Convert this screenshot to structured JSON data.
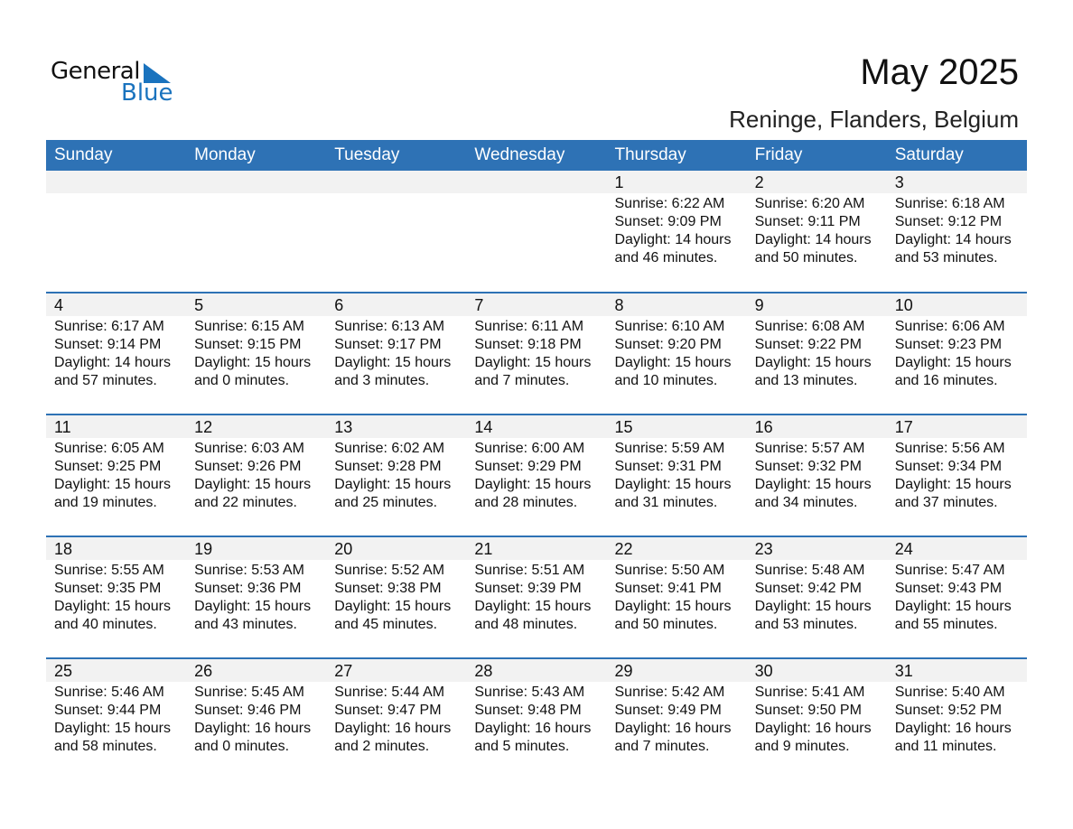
{
  "logo": {
    "text1": "General",
    "text2": "Blue"
  },
  "header": {
    "title": "May 2025",
    "location": "Reninge, Flanders, Belgium"
  },
  "colors": {
    "accent": "#2e72b5",
    "date_band": "#f2f2f2"
  },
  "weekdays": [
    "Sunday",
    "Monday",
    "Tuesday",
    "Wednesday",
    "Thursday",
    "Friday",
    "Saturday"
  ],
  "weeks": [
    [
      {},
      {},
      {},
      {},
      {
        "day": "1",
        "sunrise": "Sunrise: 6:22 AM",
        "sunset": "Sunset: 9:09 PM",
        "daylight": "Daylight: 14 hours",
        "minutes": "and 46 minutes."
      },
      {
        "day": "2",
        "sunrise": "Sunrise: 6:20 AM",
        "sunset": "Sunset: 9:11 PM",
        "daylight": "Daylight: 14 hours",
        "minutes": "and 50 minutes."
      },
      {
        "day": "3",
        "sunrise": "Sunrise: 6:18 AM",
        "sunset": "Sunset: 9:12 PM",
        "daylight": "Daylight: 14 hours",
        "minutes": "and 53 minutes."
      }
    ],
    [
      {
        "day": "4",
        "sunrise": "Sunrise: 6:17 AM",
        "sunset": "Sunset: 9:14 PM",
        "daylight": "Daylight: 14 hours",
        "minutes": "and 57 minutes."
      },
      {
        "day": "5",
        "sunrise": "Sunrise: 6:15 AM",
        "sunset": "Sunset: 9:15 PM",
        "daylight": "Daylight: 15 hours",
        "minutes": "and 0 minutes."
      },
      {
        "day": "6",
        "sunrise": "Sunrise: 6:13 AM",
        "sunset": "Sunset: 9:17 PM",
        "daylight": "Daylight: 15 hours",
        "minutes": "and 3 minutes."
      },
      {
        "day": "7",
        "sunrise": "Sunrise: 6:11 AM",
        "sunset": "Sunset: 9:18 PM",
        "daylight": "Daylight: 15 hours",
        "minutes": "and 7 minutes."
      },
      {
        "day": "8",
        "sunrise": "Sunrise: 6:10 AM",
        "sunset": "Sunset: 9:20 PM",
        "daylight": "Daylight: 15 hours",
        "minutes": "and 10 minutes."
      },
      {
        "day": "9",
        "sunrise": "Sunrise: 6:08 AM",
        "sunset": "Sunset: 9:22 PM",
        "daylight": "Daylight: 15 hours",
        "minutes": "and 13 minutes."
      },
      {
        "day": "10",
        "sunrise": "Sunrise: 6:06 AM",
        "sunset": "Sunset: 9:23 PM",
        "daylight": "Daylight: 15 hours",
        "minutes": "and 16 minutes."
      }
    ],
    [
      {
        "day": "11",
        "sunrise": "Sunrise: 6:05 AM",
        "sunset": "Sunset: 9:25 PM",
        "daylight": "Daylight: 15 hours",
        "minutes": "and 19 minutes."
      },
      {
        "day": "12",
        "sunrise": "Sunrise: 6:03 AM",
        "sunset": "Sunset: 9:26 PM",
        "daylight": "Daylight: 15 hours",
        "minutes": "and 22 minutes."
      },
      {
        "day": "13",
        "sunrise": "Sunrise: 6:02 AM",
        "sunset": "Sunset: 9:28 PM",
        "daylight": "Daylight: 15 hours",
        "minutes": "and 25 minutes."
      },
      {
        "day": "14",
        "sunrise": "Sunrise: 6:00 AM",
        "sunset": "Sunset: 9:29 PM",
        "daylight": "Daylight: 15 hours",
        "minutes": "and 28 minutes."
      },
      {
        "day": "15",
        "sunrise": "Sunrise: 5:59 AM",
        "sunset": "Sunset: 9:31 PM",
        "daylight": "Daylight: 15 hours",
        "minutes": "and 31 minutes."
      },
      {
        "day": "16",
        "sunrise": "Sunrise: 5:57 AM",
        "sunset": "Sunset: 9:32 PM",
        "daylight": "Daylight: 15 hours",
        "minutes": "and 34 minutes."
      },
      {
        "day": "17",
        "sunrise": "Sunrise: 5:56 AM",
        "sunset": "Sunset: 9:34 PM",
        "daylight": "Daylight: 15 hours",
        "minutes": "and 37 minutes."
      }
    ],
    [
      {
        "day": "18",
        "sunrise": "Sunrise: 5:55 AM",
        "sunset": "Sunset: 9:35 PM",
        "daylight": "Daylight: 15 hours",
        "minutes": "and 40 minutes."
      },
      {
        "day": "19",
        "sunrise": "Sunrise: 5:53 AM",
        "sunset": "Sunset: 9:36 PM",
        "daylight": "Daylight: 15 hours",
        "minutes": "and 43 minutes."
      },
      {
        "day": "20",
        "sunrise": "Sunrise: 5:52 AM",
        "sunset": "Sunset: 9:38 PM",
        "daylight": "Daylight: 15 hours",
        "minutes": "and 45 minutes."
      },
      {
        "day": "21",
        "sunrise": "Sunrise: 5:51 AM",
        "sunset": "Sunset: 9:39 PM",
        "daylight": "Daylight: 15 hours",
        "minutes": "and 48 minutes."
      },
      {
        "day": "22",
        "sunrise": "Sunrise: 5:50 AM",
        "sunset": "Sunset: 9:41 PM",
        "daylight": "Daylight: 15 hours",
        "minutes": "and 50 minutes."
      },
      {
        "day": "23",
        "sunrise": "Sunrise: 5:48 AM",
        "sunset": "Sunset: 9:42 PM",
        "daylight": "Daylight: 15 hours",
        "minutes": "and 53 minutes."
      },
      {
        "day": "24",
        "sunrise": "Sunrise: 5:47 AM",
        "sunset": "Sunset: 9:43 PM",
        "daylight": "Daylight: 15 hours",
        "minutes": "and 55 minutes."
      }
    ],
    [
      {
        "day": "25",
        "sunrise": "Sunrise: 5:46 AM",
        "sunset": "Sunset: 9:44 PM",
        "daylight": "Daylight: 15 hours",
        "minutes": "and 58 minutes."
      },
      {
        "day": "26",
        "sunrise": "Sunrise: 5:45 AM",
        "sunset": "Sunset: 9:46 PM",
        "daylight": "Daylight: 16 hours",
        "minutes": "and 0 minutes."
      },
      {
        "day": "27",
        "sunrise": "Sunrise: 5:44 AM",
        "sunset": "Sunset: 9:47 PM",
        "daylight": "Daylight: 16 hours",
        "minutes": "and 2 minutes."
      },
      {
        "day": "28",
        "sunrise": "Sunrise: 5:43 AM",
        "sunset": "Sunset: 9:48 PM",
        "daylight": "Daylight: 16 hours",
        "minutes": "and 5 minutes."
      },
      {
        "day": "29",
        "sunrise": "Sunrise: 5:42 AM",
        "sunset": "Sunset: 9:49 PM",
        "daylight": "Daylight: 16 hours",
        "minutes": "and 7 minutes."
      },
      {
        "day": "30",
        "sunrise": "Sunrise: 5:41 AM",
        "sunset": "Sunset: 9:50 PM",
        "daylight": "Daylight: 16 hours",
        "minutes": "and 9 minutes."
      },
      {
        "day": "31",
        "sunrise": "Sunrise: 5:40 AM",
        "sunset": "Sunset: 9:52 PM",
        "daylight": "Daylight: 16 hours",
        "minutes": "and 11 minutes."
      }
    ]
  ]
}
